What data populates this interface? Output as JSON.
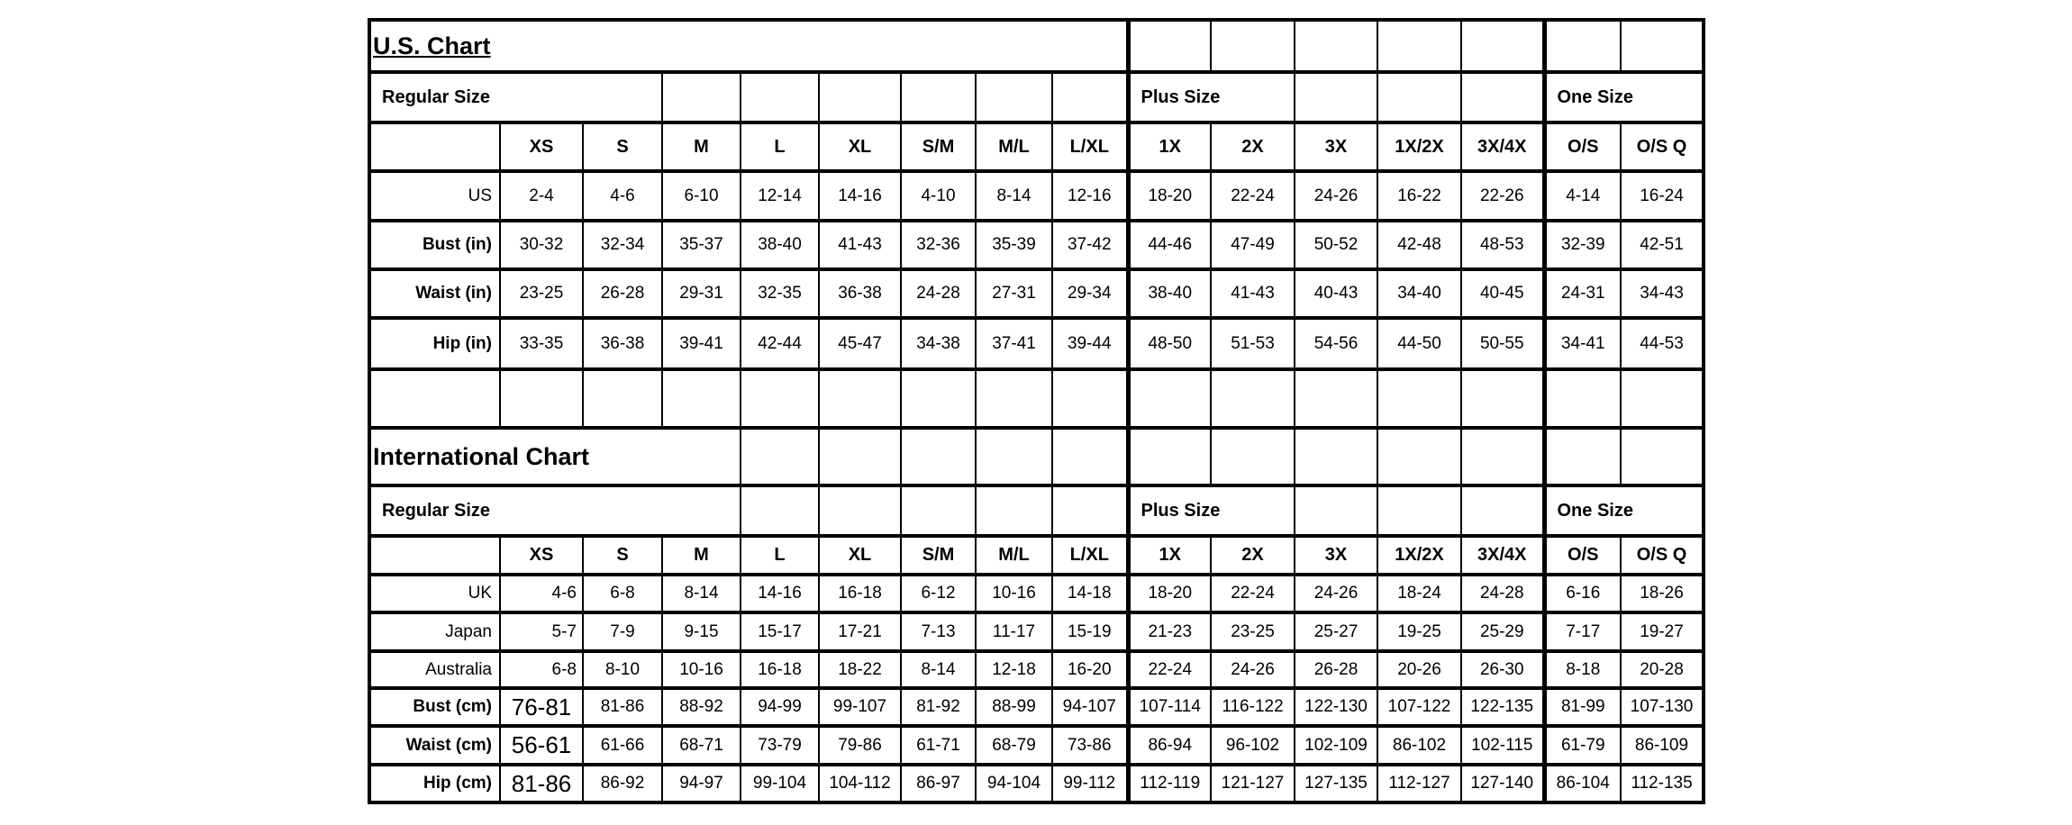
{
  "size_columns": [
    "XS",
    "S",
    "M",
    "L",
    "XL",
    "S/M",
    "M/L",
    "L/XL",
    "1X",
    "2X",
    "3X",
    "1X/2X",
    "3X/4X",
    "O/S",
    "O/S Q"
  ],
  "groups": {
    "regular": "Regular Size",
    "plus": "Plus Size",
    "one": "One Size"
  },
  "us_chart": {
    "title": "U.S. Chart",
    "rows": [
      {
        "label": "US",
        "bold": false,
        "values": [
          "2-4",
          "4-6",
          "6-10",
          "12-14",
          "14-16",
          "4-10",
          "8-14",
          "12-16",
          "18-20",
          "22-24",
          "24-26",
          "16-22",
          "22-26",
          "4-14",
          "16-24"
        ]
      },
      {
        "label": "Bust (in)",
        "bold": true,
        "values": [
          "30-32",
          "32-34",
          "35-37",
          "38-40",
          "41-43",
          "32-36",
          "35-39",
          "37-42",
          "44-46",
          "47-49",
          "50-52",
          "42-48",
          "48-53",
          "32-39",
          "42-51"
        ]
      },
      {
        "label": "Waist (in)",
        "bold": true,
        "values": [
          "23-25",
          "26-28",
          "29-31",
          "32-35",
          "36-38",
          "24-28",
          "27-31",
          "29-34",
          "38-40",
          "41-43",
          "40-43",
          "34-40",
          "40-45",
          "24-31",
          "34-43"
        ]
      },
      {
        "label": "Hip (in)",
        "bold": true,
        "values": [
          "33-35",
          "36-38",
          "39-41",
          "42-44",
          "45-47",
          "34-38",
          "37-41",
          "39-44",
          "48-50",
          "51-53",
          "54-56",
          "44-50",
          "50-55",
          "34-41",
          "44-53"
        ]
      }
    ]
  },
  "international_chart": {
    "title": "International Chart",
    "rows": [
      {
        "label": "UK",
        "bold": false,
        "values": [
          "4-6",
          "6-8",
          "8-14",
          "14-16",
          "16-18",
          "6-12",
          "10-16",
          "14-18",
          "18-20",
          "22-24",
          "24-26",
          "18-24",
          "24-28",
          "6-16",
          "18-26"
        ]
      },
      {
        "label": "Japan",
        "bold": false,
        "values": [
          "5-7",
          "7-9",
          "9-15",
          "15-17",
          "17-21",
          "7-13",
          "11-17",
          "15-19",
          "21-23",
          "23-25",
          "25-27",
          "19-25",
          "25-29",
          "7-17",
          "19-27"
        ]
      },
      {
        "label": "Australia",
        "bold": false,
        "values": [
          "6-8",
          "8-10",
          "10-16",
          "16-18",
          "18-22",
          "8-14",
          "12-18",
          "16-20",
          "22-24",
          "24-26",
          "26-28",
          "20-26",
          "26-30",
          "8-18",
          "20-28"
        ]
      },
      {
        "label": "Bust (cm)",
        "bold": true,
        "values": [
          "76-81",
          "81-86",
          "88-92",
          "94-99",
          "99-107",
          "81-92",
          "88-99",
          "94-107",
          "107-114",
          "116-122",
          "122-130",
          "107-122",
          "122-135",
          "81-99",
          "107-130"
        ]
      },
      {
        "label": "Waist (cm)",
        "bold": true,
        "values": [
          "56-61",
          "61-66",
          "68-71",
          "73-79",
          "79-86",
          "61-71",
          "68-79",
          "73-86",
          "86-94",
          "96-102",
          "102-109",
          "86-102",
          "102-115",
          "61-79",
          "86-109"
        ]
      },
      {
        "label": "Hip (cm)",
        "bold": true,
        "values": [
          "81-86",
          "86-92",
          "94-97",
          "99-104",
          "104-112",
          "86-97",
          "94-104",
          "99-112",
          "112-119",
          "121-127",
          "127-135",
          "112-127",
          "127-140",
          "86-104",
          "112-135"
        ]
      }
    ]
  }
}
